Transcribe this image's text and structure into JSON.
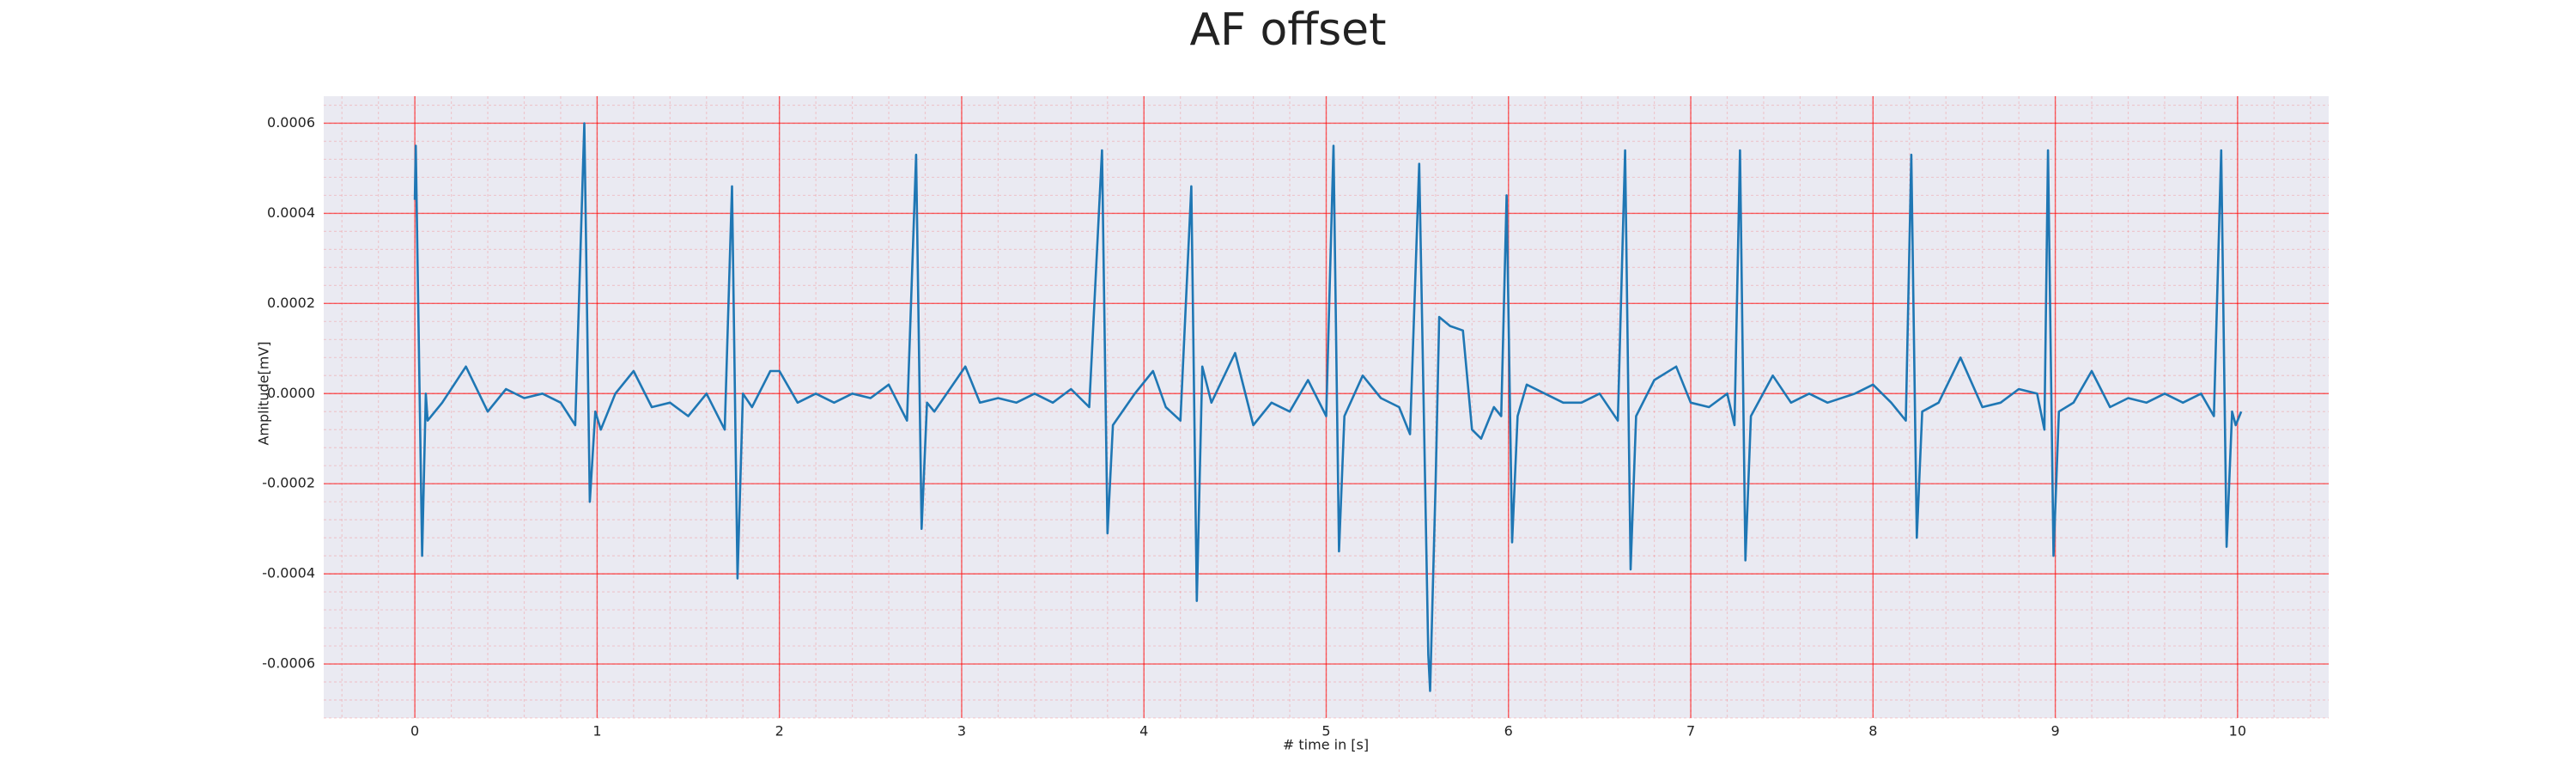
{
  "chart_data": {
    "type": "line",
    "title": "AF offset",
    "xlabel": "# time in [s]",
    "ylabel": "Amplitude[mV]",
    "x": [
      0,
      0.005,
      0.04,
      0.06,
      0.07,
      0.15,
      0.28,
      0.4,
      0.5,
      0.6,
      0.7,
      0.8,
      0.88,
      0.93,
      0.96,
      0.99,
      1.02,
      1.1,
      1.2,
      1.3,
      1.4,
      1.5,
      1.6,
      1.7,
      1.74,
      1.77,
      1.8,
      1.85,
      1.95,
      2.0,
      2.1,
      2.2,
      2.3,
      2.4,
      2.5,
      2.6,
      2.7,
      2.75,
      2.78,
      2.81,
      2.85,
      3.02,
      3.1,
      3.2,
      3.3,
      3.4,
      3.5,
      3.6,
      3.7,
      3.77,
      3.8,
      3.83,
      3.95,
      4.05,
      4.12,
      4.2,
      4.26,
      4.29,
      4.32,
      4.37,
      4.5,
      4.6,
      4.7,
      4.8,
      4.9,
      5.0,
      5.04,
      5.07,
      5.1,
      5.2,
      5.3,
      5.4,
      5.46,
      5.51,
      5.56,
      5.57,
      5.6,
      5.62,
      5.68,
      5.75,
      5.8,
      5.85,
      5.92,
      5.96,
      5.99,
      6.02,
      6.05,
      6.1,
      6.2,
      6.3,
      6.4,
      6.5,
      6.6,
      6.64,
      6.67,
      6.7,
      6.8,
      6.92,
      7.0,
      7.1,
      7.2,
      7.24,
      7.27,
      7.3,
      7.33,
      7.45,
      7.55,
      7.65,
      7.75,
      7.9,
      8.0,
      8.1,
      8.18,
      8.21,
      8.24,
      8.27,
      8.36,
      8.48,
      8.6,
      8.7,
      8.8,
      8.9,
      8.94,
      8.96,
      8.99,
      9.02,
      9.1,
      9.2,
      9.3,
      9.4,
      9.5,
      9.6,
      9.7,
      9.8,
      9.87,
      9.91,
      9.94,
      9.97,
      9.99,
      10.02
    ],
    "values": [
      0.00043,
      0.00055,
      -0.00036,
      0,
      -6e-05,
      -2e-05,
      6e-05,
      -4e-05,
      1e-05,
      -1e-05,
      0,
      -2e-05,
      -7e-05,
      0.0006,
      -0.00024,
      -4e-05,
      -8e-05,
      0,
      5e-05,
      -3e-05,
      -2e-05,
      -5e-05,
      0,
      -8e-05,
      0.00046,
      -0.00041,
      0,
      -3e-05,
      5e-05,
      5e-05,
      -2e-05,
      0,
      -2e-05,
      0,
      -1e-05,
      2e-05,
      -6e-05,
      0.00053,
      -0.0003,
      -2e-05,
      -4e-05,
      6e-05,
      -2e-05,
      -1e-05,
      -2e-05,
      0,
      -2e-05,
      1e-05,
      -3e-05,
      0.00054,
      -0.00031,
      -7e-05,
      0,
      5e-05,
      -3e-05,
      -6e-05,
      0.00046,
      -0.00046,
      6e-05,
      -2e-05,
      9e-05,
      -7e-05,
      -2e-05,
      -4e-05,
      3e-05,
      -5e-05,
      0.00055,
      -0.00035,
      -5e-05,
      4e-05,
      -1e-05,
      -3e-05,
      -9e-05,
      0.00051,
      -0.00058,
      -0.00066,
      -0.0002,
      0.00017,
      0.00015,
      0.00014,
      -8e-05,
      -0.0001,
      -3e-05,
      -5e-05,
      0.00044,
      -0.00033,
      -5e-05,
      2e-05,
      0,
      -2e-05,
      -2e-05,
      0,
      -6e-05,
      0.00054,
      -0.00039,
      -5e-05,
      3e-05,
      6e-05,
      -2e-05,
      -3e-05,
      0,
      -7e-05,
      0.00054,
      -0.00037,
      -5e-05,
      4e-05,
      -2e-05,
      0,
      -2e-05,
      0,
      2e-05,
      -2e-05,
      -6e-05,
      0.00053,
      -0.00032,
      -4e-05,
      -2e-05,
      8e-05,
      -3e-05,
      -2e-05,
      1e-05,
      0,
      -8e-05,
      0.00054,
      -0.00036,
      -4e-05,
      -2e-05,
      5e-05,
      -3e-05,
      -1e-05,
      -2e-05,
      0,
      -2e-05,
      0,
      -5e-05,
      0.00054,
      -0.00034,
      -4e-05,
      -7e-05,
      -4e-05
    ],
    "color": "#1f77b4",
    "xlim": [
      -0.5,
      10.5
    ],
    "xticks": [
      0,
      1,
      2,
      3,
      4,
      5,
      6,
      7,
      8,
      9,
      10
    ],
    "ylim": [
      -0.00072,
      0.00066
    ],
    "yticks": [
      -0.0006,
      -0.0004,
      -0.0002,
      {
        "value": 0,
        "label": "0.0000"
      },
      0.0002,
      0.0004,
      0.0006
    ],
    "grid": true,
    "minor_grid": true,
    "grid_color": "#ff0000"
  }
}
